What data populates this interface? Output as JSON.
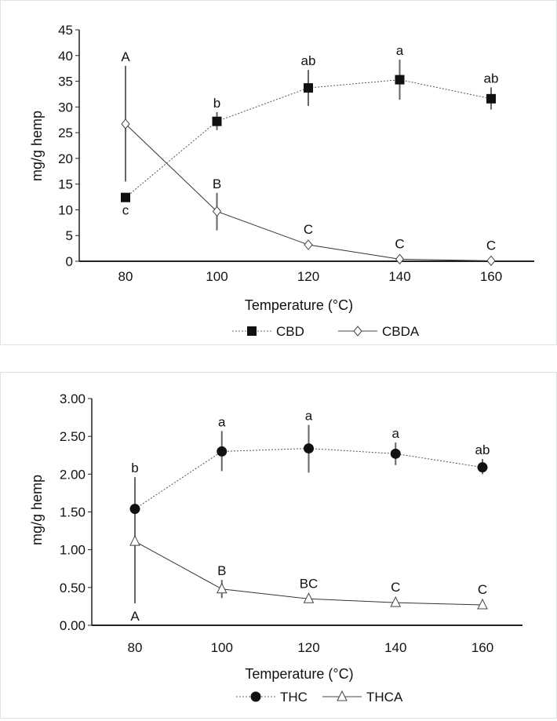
{
  "chart_data": [
    {
      "type": "line",
      "xlabel": "Temperature (°C)",
      "ylabel": "mg/g hemp",
      "x": [
        80,
        100,
        120,
        140,
        160
      ],
      "xlim": [
        70,
        172
      ],
      "ylim": [
        0,
        45
      ],
      "yticks": [
        "0",
        "5",
        "10",
        "15",
        "20",
        "25",
        "30",
        "35",
        "40",
        "45"
      ],
      "xticks": [
        "80",
        "100",
        "120",
        "140",
        "160"
      ],
      "grid": false,
      "legend": "bottom",
      "series": [
        {
          "name": "CBD",
          "marker": "square-filled",
          "line": "dotted",
          "values": [
            12.4,
            27.2,
            33.7,
            35.3,
            31.6
          ],
          "err_low": [
            12.4,
            25.5,
            30.2,
            31.4,
            29.5
          ],
          "err_high": [
            12.4,
            29.0,
            37.2,
            39.2,
            33.8
          ],
          "letters": [
            "c",
            "b",
            "ab",
            "a",
            "ab"
          ],
          "letter_side": [
            "below",
            "above",
            "above",
            "above",
            "above"
          ]
        },
        {
          "name": "CBDA",
          "marker": "diamond-open",
          "line": "solid",
          "values": [
            26.7,
            9.7,
            3.2,
            0.4,
            0.1
          ],
          "err_low": [
            15.5,
            6.0,
            3.2,
            0.4,
            0.1
          ],
          "err_high": [
            38.0,
            13.3,
            3.2,
            0.4,
            0.1
          ],
          "letters": [
            "A",
            "B",
            "C",
            "C",
            "C"
          ],
          "letter_side": [
            "above",
            "above",
            "above",
            "above",
            "above"
          ]
        }
      ]
    },
    {
      "type": "line",
      "xlabel": "Temperature (°C)",
      "ylabel": "mg/g hemp",
      "x": [
        80,
        100,
        120,
        140,
        160
      ],
      "xlim": [
        70,
        172
      ],
      "ylim": [
        0,
        3
      ],
      "yticks": [
        "0.00",
        "0.50",
        "1.00",
        "1.50",
        "2.00",
        "2.50",
        "3.00"
      ],
      "xticks": [
        "80",
        "100",
        "120",
        "140",
        "160"
      ],
      "grid": false,
      "legend": "bottom",
      "series": [
        {
          "name": "THC",
          "marker": "circle-filled",
          "line": "dotted",
          "values": [
            1.54,
            2.3,
            2.34,
            2.27,
            2.09
          ],
          "err_low": [
            1.1,
            2.04,
            2.02,
            2.12,
            2.0
          ],
          "err_high": [
            1.96,
            2.57,
            2.65,
            2.42,
            2.2
          ],
          "letters": [
            "b",
            "a",
            "a",
            "a",
            "ab"
          ],
          "letter_side": [
            "above",
            "above",
            "above",
            "above",
            "above"
          ]
        },
        {
          "name": "THCA",
          "marker": "triangle-open",
          "line": "solid",
          "values": [
            1.11,
            0.48,
            0.35,
            0.3,
            0.27
          ],
          "err_low": [
            0.29,
            0.36,
            0.35,
            0.3,
            0.27
          ],
          "err_high": [
            1.11,
            0.6,
            0.35,
            0.3,
            0.27
          ],
          "letters": [
            "A",
            "B",
            "BC",
            "C",
            "C"
          ],
          "letter_side": [
            "below",
            "above",
            "above",
            "above",
            "above"
          ]
        }
      ]
    }
  ]
}
